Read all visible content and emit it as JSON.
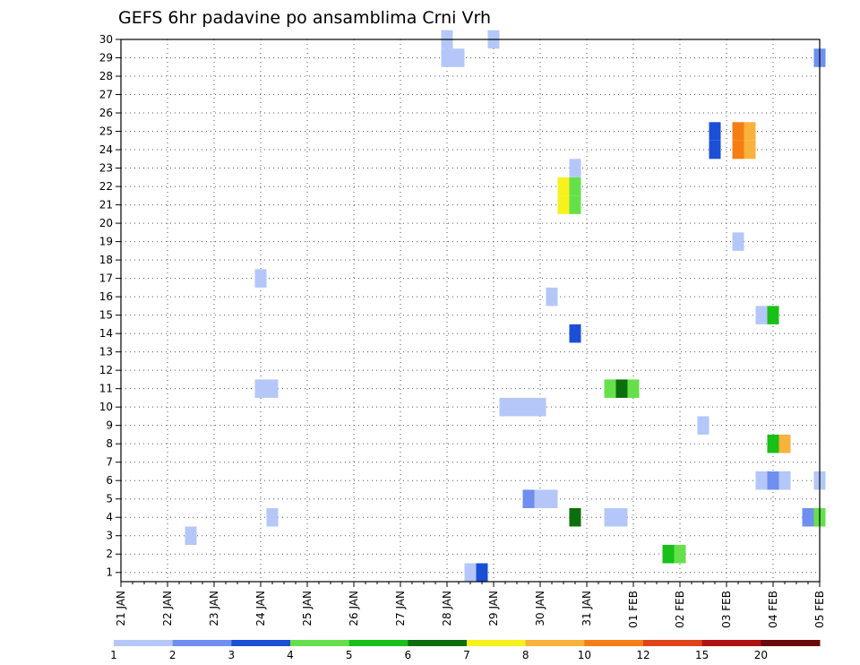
{
  "chart_data": {
    "type": "heatmap",
    "title": "GEFS 6hr padavine po ansamblima Crni Vrh",
    "x_tick_labels": [
      "21 JAN",
      "22 JAN",
      "23 JAN",
      "24 JAN",
      "25 JAN",
      "26 JAN",
      "27 JAN",
      "28 JAN",
      "29 JAN",
      "30 JAN",
      "31 JAN",
      "01 FEB",
      "02 FEB",
      "03 FEB",
      "04 FEB",
      "05 FEB"
    ],
    "y_tick_labels": [
      "1",
      "2",
      "3",
      "4",
      "5",
      "6",
      "7",
      "8",
      "9",
      "10",
      "11",
      "12",
      "13",
      "14",
      "15",
      "16",
      "17",
      "18",
      "19",
      "20",
      "21",
      "22",
      "23",
      "24",
      "25",
      "26",
      "27",
      "28",
      "29",
      "30"
    ],
    "ylim": [
      0.5,
      30
    ],
    "x_unit": "6-hour steps since 21 JAN 00Z",
    "xlim_steps": [
      0,
      60
    ],
    "grid": true,
    "colorbar": {
      "labels": [
        "1",
        "2",
        "3",
        "4",
        "5",
        "6",
        "7",
        "8",
        "10",
        "12",
        "15",
        "20"
      ],
      "colors": [
        "#b4c7f8",
        "#6e8ff0",
        "#1a4fd6",
        "#66e04a",
        "#18c018",
        "#0d6e0d",
        "#f7f11e",
        "#f9b23b",
        "#f57d14",
        "#e0421a",
        "#b01212",
        "#6a0a0a"
      ]
    },
    "cells": [
      {
        "member": 1,
        "step": 30,
        "level": 1
      },
      {
        "member": 1,
        "step": 31,
        "level": 3
      },
      {
        "member": 2,
        "step": 47,
        "level": 5
      },
      {
        "member": 2,
        "step": 48,
        "level": 4
      },
      {
        "member": 3,
        "step": 6,
        "level": 1
      },
      {
        "member": 4,
        "step": 13,
        "level": 1
      },
      {
        "member": 4,
        "step": 39,
        "level": 6
      },
      {
        "member": 4,
        "step": 42,
        "level": 1
      },
      {
        "member": 4,
        "step": 43,
        "level": 1
      },
      {
        "member": 4,
        "step": 59,
        "level": 2
      },
      {
        "member": 4,
        "step": 60,
        "level": 4
      },
      {
        "member": 5,
        "step": 35,
        "level": 2
      },
      {
        "member": 5,
        "step": 36,
        "level": 1
      },
      {
        "member": 5,
        "step": 37,
        "level": 1
      },
      {
        "member": 6,
        "step": 55,
        "level": 1
      },
      {
        "member": 6,
        "step": 56,
        "level": 2
      },
      {
        "member": 6,
        "step": 57,
        "level": 1
      },
      {
        "member": 6,
        "step": 60,
        "level": 1
      },
      {
        "member": 8,
        "step": 56,
        "level": 5
      },
      {
        "member": 8,
        "step": 57,
        "level": 8
      },
      {
        "member": 9,
        "step": 50,
        "level": 1
      },
      {
        "member": 10,
        "step": 33,
        "level": 1
      },
      {
        "member": 10,
        "step": 34,
        "level": 1
      },
      {
        "member": 10,
        "step": 35,
        "level": 1
      },
      {
        "member": 10,
        "step": 36,
        "level": 1
      },
      {
        "member": 11,
        "step": 12,
        "level": 1
      },
      {
        "member": 11,
        "step": 13,
        "level": 1
      },
      {
        "member": 11,
        "step": 42,
        "level": 4
      },
      {
        "member": 11,
        "step": 43,
        "level": 6
      },
      {
        "member": 11,
        "step": 44,
        "level": 4
      },
      {
        "member": 14,
        "step": 39,
        "level": 3
      },
      {
        "member": 15,
        "step": 55,
        "level": 1
      },
      {
        "member": 15,
        "step": 56,
        "level": 5
      },
      {
        "member": 16,
        "step": 37,
        "level": 1
      },
      {
        "member": 17,
        "step": 12,
        "level": 1
      },
      {
        "member": 19,
        "step": 53,
        "level": 1
      },
      {
        "member": 21,
        "step": 38,
        "level": 7
      },
      {
        "member": 21,
        "step": 39,
        "level": 4
      },
      {
        "member": 22,
        "step": 38,
        "level": 7
      },
      {
        "member": 22,
        "step": 39,
        "level": 4
      },
      {
        "member": 23,
        "step": 39,
        "level": 1
      },
      {
        "member": 24,
        "step": 51,
        "level": 3
      },
      {
        "member": 24,
        "step": 53,
        "level": 9
      },
      {
        "member": 24,
        "step": 54,
        "level": 8
      },
      {
        "member": 25,
        "step": 51,
        "level": 3
      },
      {
        "member": 25,
        "step": 53,
        "level": 9
      },
      {
        "member": 25,
        "step": 54,
        "level": 8
      },
      {
        "member": 29,
        "step": 28,
        "level": 1
      },
      {
        "member": 29,
        "step": 29,
        "level": 1
      },
      {
        "member": 29,
        "step": 60,
        "level": 2
      },
      {
        "member": 30,
        "step": 28,
        "level": 1
      },
      {
        "member": 30,
        "step": 32,
        "level": 1
      }
    ]
  }
}
